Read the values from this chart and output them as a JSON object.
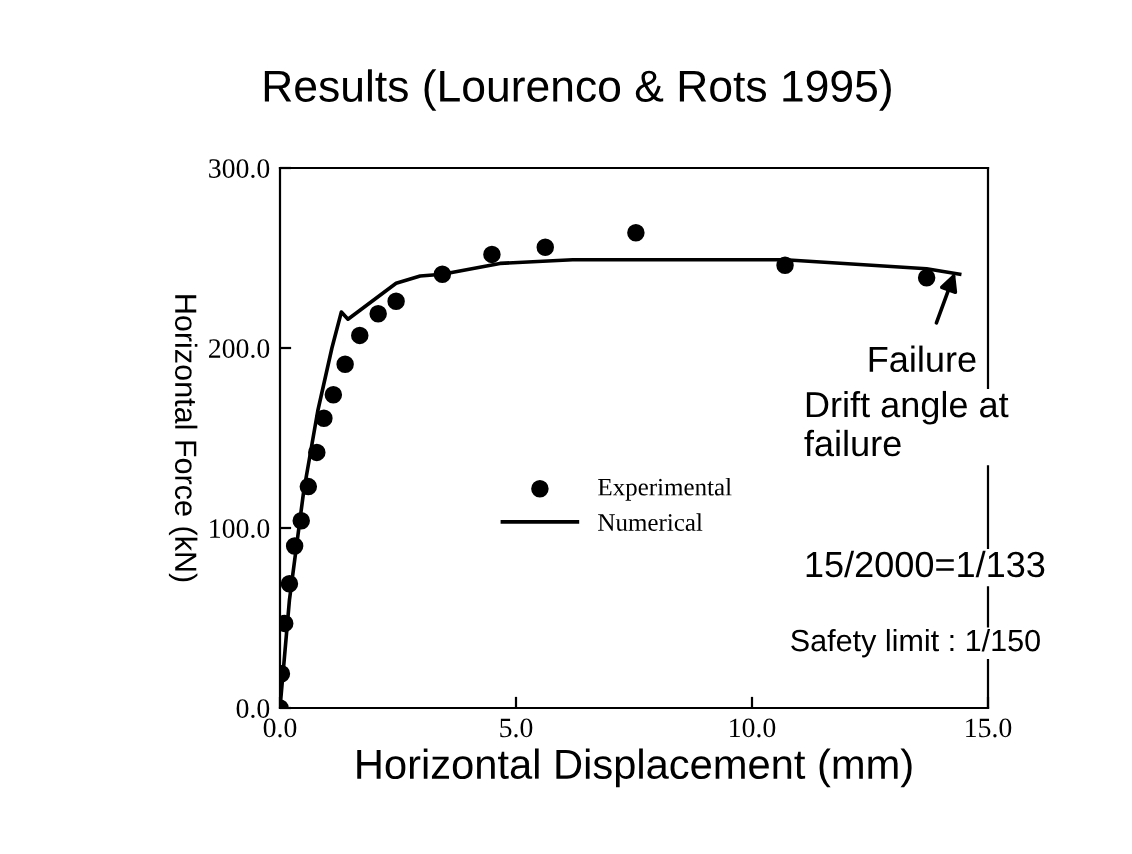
{
  "chart_data": {
    "type": "scatter",
    "title": "Results (Lourenco & Rots 1995)",
    "xlabel": "Horizontal Displacement (mm)",
    "ylabel": "Horizontal Force (kN)",
    "series": [
      {
        "name": "Experimental",
        "type": "scatter",
        "color": "#000000",
        "marker": "circle",
        "x": [
          0,
          0.03,
          0.1,
          0.2,
          0.31,
          0.45,
          0.6,
          0.78,
          0.93,
          1.13,
          1.38,
          1.69,
          2.08,
          2.46,
          3.44,
          4.49,
          5.62,
          7.54,
          10.7,
          13.7
        ],
        "values": [
          0,
          19,
          47,
          69,
          90,
          104,
          123,
          142,
          161,
          174,
          191,
          207,
          219,
          226,
          241,
          252,
          256,
          264,
          246,
          239
        ]
      },
      {
        "name": "Numerical",
        "type": "line",
        "color": "#000000",
        "line_style": "solid",
        "x": [
          0,
          0.2,
          0.5,
          0.8,
          1.1,
          1.3,
          1.44,
          2.46,
          2.97,
          3.44,
          4.66,
          6.2,
          10.7,
          13.7,
          14.4
        ],
        "values": [
          0,
          60,
          120,
          165,
          200,
          220,
          216,
          236,
          240,
          241,
          247,
          249,
          249,
          244,
          241
        ]
      }
    ],
    "xlim": [
      0,
      15
    ],
    "ylim": [
      0,
      300
    ],
    "xticks": [
      {
        "value": 0,
        "label": "0.0"
      },
      {
        "value": 5,
        "label": "5.0"
      },
      {
        "value": 10,
        "label": "10.0"
      },
      {
        "value": 15,
        "label": "15.0"
      }
    ],
    "yticks": [
      {
        "value": 0,
        "label": "0.0"
      },
      {
        "value": 100,
        "label": "100.0"
      },
      {
        "value": 200,
        "label": "200.0"
      },
      {
        "value": 300,
        "label": "300.0"
      }
    ],
    "grid": false,
    "legend": "center",
    "annotations": [
      {
        "text": "Failure",
        "x": 14.3,
        "y": 242
      },
      "Drift angle at\nfailure",
      "15/2000=1/133",
      "Safety limit : 1/150"
    ]
  }
}
